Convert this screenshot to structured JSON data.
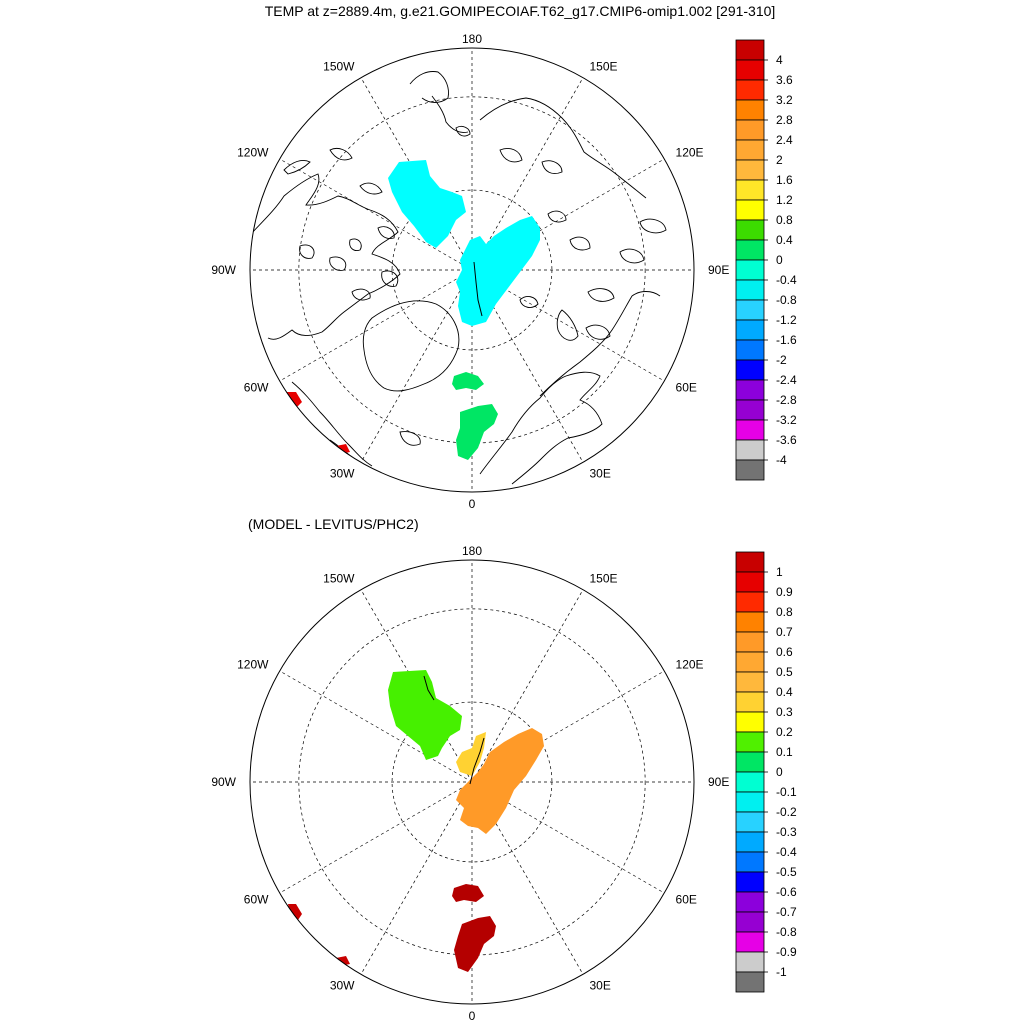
{
  "title": "TEMP at z=2889.4m, g.e21.GOMIPECOIAF.T62_g17.CMIP6-omip1.002 [291-310]",
  "subtitle": "(MODEL - LEVITUS/PHC2)",
  "longitude_labels": {
    "top": "180",
    "bottom": "0",
    "left": "90W",
    "right": "90E",
    "upper_left_outer": "150W",
    "upper_left_inner": "120W",
    "upper_right_outer": "150E",
    "upper_right_inner": "120E",
    "lower_left_inner": "60W",
    "lower_left_outer": "30W",
    "lower_right_inner": "60E",
    "lower_right_outer": "30E"
  },
  "colorbar_top": {
    "labels": [
      "4",
      "3.6",
      "3.2",
      "2.8",
      "2.4",
      "2",
      "1.6",
      "1.2",
      "0.8",
      "0.4",
      "0",
      "-0.4",
      "-0.8",
      "-1.2",
      "-1.6",
      "-2",
      "-2.4",
      "-2.8",
      "-3.2",
      "-3.6",
      "-4"
    ],
    "colors": [
      "#c80000",
      "#e60000",
      "#ff2a00",
      "#ff8200",
      "#ff9a28",
      "#ffa832",
      "#ffb83c",
      "#ffe628",
      "#ffff00",
      "#3cdc00",
      "#00e664",
      "#00ffd2",
      "#00f0f0",
      "#28d2ff",
      "#00aaff",
      "#0078ff",
      "#0000ff",
      "#8c00dc",
      "#9600d2",
      "#e600e6",
      "#cccccc",
      "#737373"
    ]
  },
  "colorbar_bottom": {
    "labels": [
      "1",
      "0.9",
      "0.8",
      "0.7",
      "0.6",
      "0.5",
      "0.4",
      "0.3",
      "0.2",
      "0.1",
      "0",
      "-0.1",
      "-0.2",
      "-0.3",
      "-0.4",
      "-0.5",
      "-0.6",
      "-0.7",
      "-0.8",
      "-0.9",
      "-1"
    ],
    "colors": [
      "#c80000",
      "#e60000",
      "#ff2a00",
      "#ff8200",
      "#ff9a28",
      "#ffa832",
      "#ffb83c",
      "#ffd232",
      "#ffff00",
      "#50f000",
      "#00e664",
      "#00ffd2",
      "#00f0f0",
      "#28d2ff",
      "#00aaff",
      "#0078ff",
      "#0000ff",
      "#8c00dc",
      "#9600d2",
      "#e600e6",
      "#cccccc",
      "#737373"
    ]
  },
  "top_fields": [
    {
      "region": "canada-basin",
      "value": -0.6,
      "color": "#00ffff"
    },
    {
      "region": "eurasian-basin",
      "value": -0.6,
      "color": "#00ffff"
    },
    {
      "region": "greenland-sea-north",
      "value": 0.2,
      "color": "#00e664"
    },
    {
      "region": "greenland-sea-south",
      "value": 0.2,
      "color": "#00e664"
    },
    {
      "region": "labrador-patch",
      "value": 3.4,
      "color": "#e60000"
    }
  ],
  "bottom_fields": [
    {
      "region": "canada-basin",
      "value": 0.15,
      "color": "#46f000"
    },
    {
      "region": "lomonosov-ridge",
      "value": 0.35,
      "color": "#ffd232"
    },
    {
      "region": "eurasian-basin",
      "value": 0.55,
      "color": "#ff9a28"
    },
    {
      "region": "greenland-sea-north",
      "value": 0.95,
      "color": "#b40000"
    },
    {
      "region": "greenland-sea-south",
      "value": 0.95,
      "color": "#b40000"
    },
    {
      "region": "labrador-patch",
      "value": 0.95,
      "color": "#c80000"
    }
  ]
}
